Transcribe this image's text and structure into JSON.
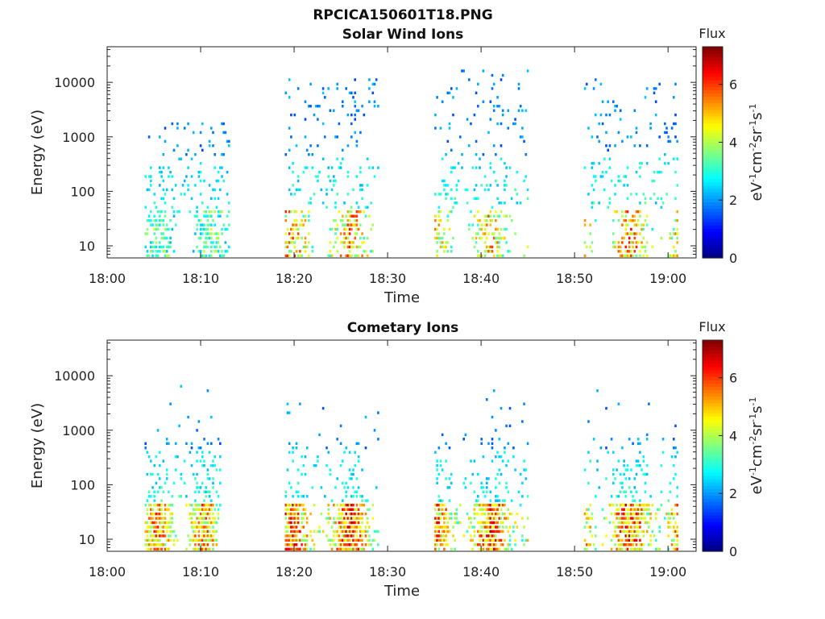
{
  "figure_title": "RPCICA150601T18.PNG",
  "chart_data": [
    {
      "type": "heatmap",
      "title": "Solar Wind Ions",
      "xlabel": "Time",
      "ylabel": "Energy (eV)",
      "y_scale": "log",
      "xlim": [
        "18:00",
        "19:03"
      ],
      "ylim": [
        6,
        45000
      ],
      "x_ticks": [
        "18:00",
        "18:10",
        "18:20",
        "18:30",
        "18:40",
        "18:50",
        "19:00"
      ],
      "y_ticks": [
        "10",
        "100",
        "1000",
        "10000"
      ],
      "y_tick_values": [
        10,
        100,
        1000,
        10000
      ],
      "colorbar": {
        "title": "Flux",
        "label": "eV-1cm-2sr-1s-1",
        "range": [
          0,
          7.3
        ],
        "ticks": [
          "0",
          "2",
          "4",
          "6"
        ],
        "colormap": "jet"
      },
      "bursts": [
        {
          "start": "18:04",
          "end": "18:13",
          "peak_flux": 4.5,
          "max_energy": 1800
        },
        {
          "start": "18:19",
          "end": "18:29",
          "peak_flux": 6.3,
          "max_energy": 12000
        },
        {
          "start": "18:35",
          "end": "18:45",
          "peak_flux": 6.0,
          "max_energy": 18000
        },
        {
          "start": "18:51",
          "end": "19:01",
          "peak_flux": 6.5,
          "max_energy": 13000
        }
      ]
    },
    {
      "type": "heatmap",
      "title": "Cometary Ions",
      "xlabel": "Time",
      "ylabel": "Energy (eV)",
      "y_scale": "log",
      "xlim": [
        "18:00",
        "19:03"
      ],
      "ylim": [
        6,
        45000
      ],
      "x_ticks": [
        "18:00",
        "18:10",
        "18:20",
        "18:30",
        "18:40",
        "18:50",
        "19:00"
      ],
      "y_ticks": [
        "10",
        "100",
        "1000",
        "10000"
      ],
      "y_tick_values": [
        10,
        100,
        1000,
        10000
      ],
      "colorbar": {
        "title": "Flux",
        "label": "eV-1cm-2sr-1s-1",
        "range": [
          0,
          7.3
        ],
        "ticks": [
          "0",
          "2",
          "4",
          "6"
        ],
        "colormap": "jet"
      },
      "bursts": [
        {
          "start": "18:04",
          "end": "18:12",
          "peak_flux": 6.5,
          "max_energy": 12000
        },
        {
          "start": "18:19",
          "end": "18:29",
          "peak_flux": 7.0,
          "max_energy": 3500
        },
        {
          "start": "18:35",
          "end": "18:45",
          "peak_flux": 7.0,
          "max_energy": 6000
        },
        {
          "start": "18:51",
          "end": "19:01",
          "peak_flux": 7.0,
          "max_energy": 6000
        }
      ]
    }
  ]
}
